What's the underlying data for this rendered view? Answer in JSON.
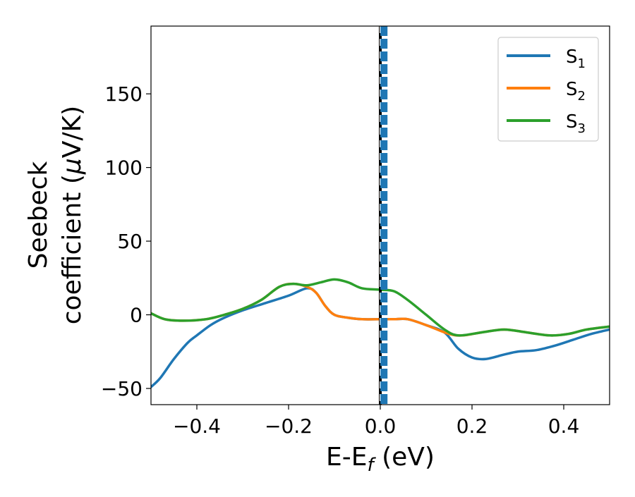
{
  "chart_data": {
    "type": "line",
    "title": "",
    "xlabel": {
      "main": "E-E",
      "sub": "f",
      "tail": " (eV)"
    },
    "ylabel": {
      "line1": "Seebeck",
      "line2": "coefficient  (",
      "mu": "μ",
      "line2_tail": "V/K)"
    },
    "xlim": [
      -0.5,
      0.5
    ],
    "ylim": [
      -61,
      196
    ],
    "xticks": [
      {
        "value": -0.4,
        "label": "−0.4"
      },
      {
        "value": -0.2,
        "label": "−0.2"
      },
      {
        "value": 0.0,
        "label": "0.0"
      },
      {
        "value": 0.2,
        "label": "0.2"
      },
      {
        "value": 0.4,
        "label": "0.4"
      }
    ],
    "yticks": [
      {
        "value": -50,
        "label": "−50"
      },
      {
        "value": 0,
        "label": "0"
      },
      {
        "value": 50,
        "label": "50"
      },
      {
        "value": 100,
        "label": "100"
      },
      {
        "value": 150,
        "label": "150"
      }
    ],
    "grid": false,
    "legend_position": "top-right",
    "vertical_lines": [
      {
        "x": 0.0,
        "color": "#000000",
        "style": "solid"
      },
      {
        "x": 0.0,
        "color": "#ffffff",
        "style": "dashed-thin"
      },
      {
        "x": 0.008,
        "color": "#1f77b4",
        "style": "dashed-thick"
      }
    ],
    "series": [
      {
        "name": "S",
        "sub": "1",
        "color": "#1f77b4",
        "points": [
          [
            -0.5,
            -49
          ],
          [
            -0.48,
            -43
          ],
          [
            -0.45,
            -30
          ],
          [
            -0.42,
            -19
          ],
          [
            -0.4,
            -14
          ],
          [
            -0.37,
            -7
          ],
          [
            -0.34,
            -2
          ],
          [
            -0.3,
            3
          ],
          [
            -0.25,
            8
          ],
          [
            -0.2,
            13
          ],
          [
            -0.16,
            18
          ],
          [
            -0.14,
            15
          ],
          [
            -0.12,
            6
          ],
          [
            -0.1,
            0
          ],
          [
            -0.07,
            -2
          ],
          [
            -0.04,
            -3
          ],
          [
            0.0,
            -3
          ],
          [
            0.03,
            -3
          ],
          [
            0.06,
            -3
          ],
          [
            0.1,
            -7
          ],
          [
            0.14,
            -12
          ],
          [
            0.17,
            -23
          ],
          [
            0.2,
            -29
          ],
          [
            0.23,
            -30
          ],
          [
            0.27,
            -27
          ],
          [
            0.3,
            -25
          ],
          [
            0.34,
            -24
          ],
          [
            0.38,
            -21
          ],
          [
            0.42,
            -17
          ],
          [
            0.46,
            -13
          ],
          [
            0.5,
            -10
          ]
        ]
      },
      {
        "name": "S",
        "sub": "2",
        "color": "#ff7f0e",
        "points": [
          [
            -0.5,
            1
          ],
          [
            -0.47,
            -3
          ],
          [
            -0.43,
            -4
          ],
          [
            -0.38,
            -3
          ],
          [
            -0.34,
            0
          ],
          [
            -0.3,
            4
          ],
          [
            -0.26,
            10
          ],
          [
            -0.22,
            19
          ],
          [
            -0.19,
            21
          ],
          [
            -0.16,
            19
          ],
          [
            -0.14,
            15
          ],
          [
            -0.12,
            6
          ],
          [
            -0.1,
            0
          ],
          [
            -0.07,
            -2
          ],
          [
            -0.04,
            -3
          ],
          [
            0.0,
            -3
          ],
          [
            0.03,
            -3
          ],
          [
            0.06,
            -3
          ],
          [
            0.1,
            -7
          ],
          [
            0.15,
            -13
          ],
          [
            0.18,
            -14
          ],
          [
            0.22,
            -12
          ],
          [
            0.27,
            -10
          ],
          [
            0.32,
            -12
          ],
          [
            0.37,
            -14
          ],
          [
            0.41,
            -13
          ],
          [
            0.45,
            -10
          ],
          [
            0.5,
            -8
          ]
        ]
      },
      {
        "name": "S",
        "sub": "3",
        "color": "#2ca02c",
        "points": [
          [
            -0.5,
            1
          ],
          [
            -0.47,
            -3
          ],
          [
            -0.43,
            -4
          ],
          [
            -0.38,
            -3
          ],
          [
            -0.34,
            0
          ],
          [
            -0.3,
            4
          ],
          [
            -0.26,
            10
          ],
          [
            -0.22,
            19
          ],
          [
            -0.19,
            21
          ],
          [
            -0.16,
            20
          ],
          [
            -0.13,
            22
          ],
          [
            -0.1,
            24
          ],
          [
            -0.07,
            22
          ],
          [
            -0.04,
            18
          ],
          [
            0.0,
            17
          ],
          [
            0.03,
            16
          ],
          [
            0.06,
            10
          ],
          [
            0.1,
            0
          ],
          [
            0.14,
            -10
          ],
          [
            0.17,
            -14
          ],
          [
            0.22,
            -12
          ],
          [
            0.27,
            -10
          ],
          [
            0.32,
            -12
          ],
          [
            0.37,
            -14
          ],
          [
            0.41,
            -13
          ],
          [
            0.45,
            -10
          ],
          [
            0.5,
            -8
          ]
        ]
      }
    ]
  }
}
